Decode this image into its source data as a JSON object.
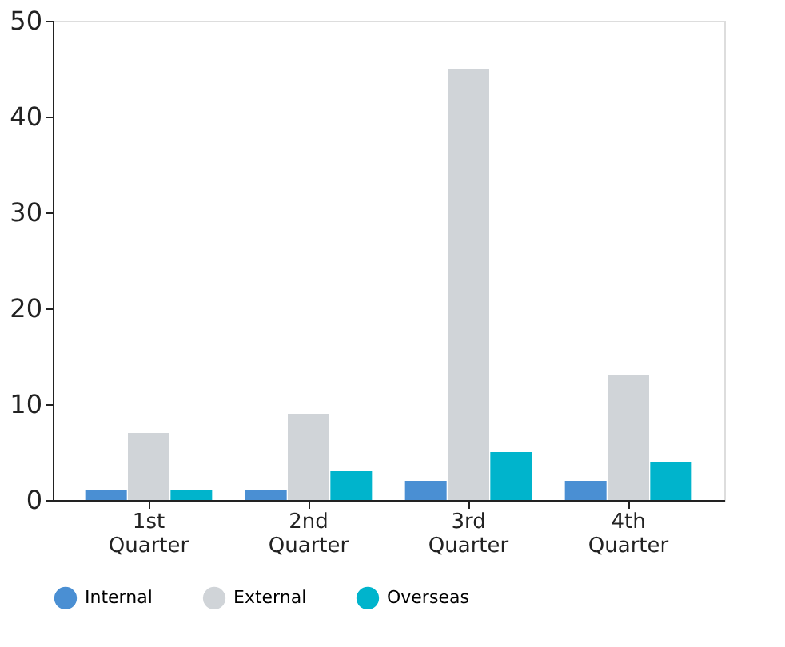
{
  "chart_data": {
    "type": "bar",
    "categories": [
      "1st Quarter",
      "2nd Quarter",
      "3rd Quarter",
      "4th Quarter"
    ],
    "series": [
      {
        "name": "Internal",
        "color": "#4a8fd3",
        "values": [
          1,
          1,
          2,
          2
        ]
      },
      {
        "name": "External",
        "color": "#d0d4d8",
        "values": [
          7,
          9,
          45,
          13
        ]
      },
      {
        "name": "Overseas",
        "color": "#00b4cc",
        "values": [
          1,
          3,
          5,
          4
        ]
      }
    ],
    "ylim": [
      0,
      50
    ],
    "yticks": [
      0,
      10,
      20,
      30,
      40,
      50
    ],
    "grid": false,
    "legend": "bottom"
  }
}
